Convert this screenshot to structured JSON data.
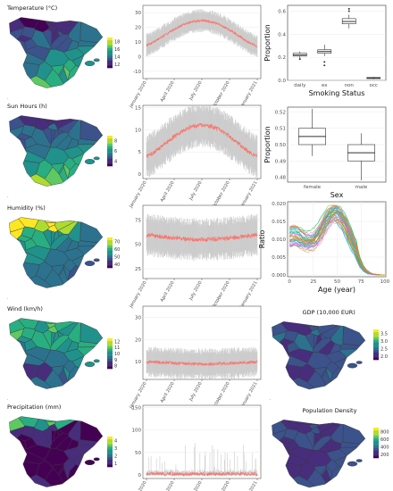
{
  "palette": {
    "viridis": [
      "#440154",
      "#472d7b",
      "#3b528b",
      "#2c728e",
      "#21918c",
      "#28ae80",
      "#5ec962",
      "#addc30",
      "#fde725"
    ],
    "line": "#f8766d",
    "band": "#cccccc",
    "grid": "#ebebeb",
    "axis": "#4d4d4d",
    "panel_border": "#333333",
    "map_border": "#333333"
  },
  "dates": [
    "January 2020",
    "April 2020",
    "July 2020",
    "October 2020",
    "January 2021"
  ],
  "maps": [
    {
      "title": "Temperature (°C)",
      "ticks": [
        "12",
        "14",
        "16",
        "18"
      ],
      "pattern": "temperature"
    },
    {
      "title": "Sun Hours (h)",
      "ticks": [
        "4",
        "6",
        "8"
      ],
      "pattern": "sun"
    },
    {
      "title": "Humidity (%)",
      "ticks": [
        "40",
        "50",
        "60",
        "70"
      ],
      "pattern": "humidity"
    },
    {
      "title": "Wind (km/h)",
      "ticks": [
        "8",
        "9",
        "10",
        "11",
        "12"
      ],
      "pattern": "wind"
    },
    {
      "title": "Precipitation (mm)",
      "ticks": [
        "1",
        "2",
        "3",
        "4"
      ],
      "pattern": "precip"
    },
    {
      "title": "GDP (10,000 EUR)",
      "ticks": [
        "2.0",
        "2.5",
        "3.0",
        "3.5"
      ],
      "pattern": "gdp"
    },
    {
      "title": "Population Density",
      "ticks": [
        "200",
        "400",
        "600",
        "800"
      ],
      "pattern": "density"
    }
  ],
  "chart_data": [
    {
      "id": "temperature_ts",
      "type": "line",
      "series": [
        {
          "values_profile": "seasonal"
        }
      ],
      "y_ticks": [
        "-10",
        "0",
        "10",
        "20",
        "30"
      ],
      "ylim": [
        -15,
        35
      ],
      "x_ticks": [
        "January 2020",
        "April 2020",
        "July 2020",
        "October 2020",
        "January 2021"
      ],
      "mean_start": 8,
      "mean_peak": 25,
      "mean_end": 5,
      "band_half_width": 8
    },
    {
      "id": "sun_ts",
      "type": "line",
      "series": [
        {
          "values_profile": "seasonal"
        }
      ],
      "y_ticks": [
        "0",
        "5",
        "10",
        "15"
      ],
      "ylim": [
        -1,
        15.5
      ],
      "x_ticks": [
        "January 2020",
        "April 2020",
        "July 2020",
        "October 2020",
        "January 2021"
      ],
      "mean_start": 4,
      "mean_peak": 11,
      "mean_end": 4,
      "band_half_width": 5
    },
    {
      "id": "humidity_ts",
      "type": "line",
      "series": [
        {
          "values_profile": "noisy"
        }
      ],
      "y_ticks": [
        "25",
        "50",
        "75"
      ],
      "ylim": [
        15,
        90
      ],
      "x_ticks": [
        "January 2020",
        "April 2020",
        "July 2020",
        "October 2020",
        "January 2021"
      ],
      "mean_start": 60,
      "mean_peak": 55,
      "mean_end": 60,
      "band_half_width": 22
    },
    {
      "id": "wind_ts",
      "type": "line",
      "series": [
        {
          "values_profile": "noisy"
        }
      ],
      "y_ticks": [
        "10",
        "20",
        "30"
      ],
      "ylim": [
        2,
        35
      ],
      "x_ticks": [
        "January 2020",
        "April 2020",
        "July 2020",
        "October 2020",
        "January 2021"
      ],
      "mean_start": 10,
      "mean_peak": 9,
      "mean_end": 10,
      "band_half_width": 7
    },
    {
      "id": "precip_ts",
      "type": "line",
      "series": [
        {
          "values_profile": "flat"
        }
      ],
      "y_ticks": [
        "0",
        "50",
        "100",
        "150"
      ],
      "ylim": [
        -8,
        155
      ],
      "x_ticks": [
        "January 2020",
        "April 2020",
        "July 2020",
        "October 2020",
        "January 2021"
      ],
      "mean_start": 2,
      "mean_peak": 2,
      "mean_end": 2,
      "band_half_width": 40
    },
    {
      "id": "smoking_box",
      "type": "box",
      "xlabel": "Smoking Status",
      "ylabel": "Proportion",
      "categories": [
        "daily",
        "ex",
        "non",
        "occ"
      ],
      "ylim": [
        0,
        0.65
      ],
      "y_ticks": [
        "0.0",
        "0.2",
        "0.4",
        "0.6"
      ],
      "boxes": [
        {
          "min": 0.19,
          "q1": 0.21,
          "median": 0.22,
          "q3": 0.235,
          "max": 0.25,
          "outliers": [
            0.185
          ]
        },
        {
          "min": 0.21,
          "q1": 0.235,
          "median": 0.25,
          "q3": 0.265,
          "max": 0.31,
          "outliers": [
            0.13,
            0.16
          ]
        },
        {
          "min": 0.45,
          "q1": 0.49,
          "median": 0.51,
          "q3": 0.535,
          "max": 0.57,
          "outliers": [
            0.6,
            0.62
          ]
        },
        {
          "min": 0.01,
          "q1": 0.015,
          "median": 0.02,
          "q3": 0.025,
          "max": 0.03,
          "outliers": []
        }
      ]
    },
    {
      "id": "sex_box",
      "type": "box",
      "xlabel": "Sex",
      "ylabel": "Proportion",
      "categories": [
        "female",
        "male"
      ],
      "ylim": [
        0.477,
        0.523
      ],
      "y_ticks": [
        "0.48",
        "0.49",
        "0.50",
        "0.51",
        "0.52"
      ],
      "boxes": [
        {
          "min": 0.493,
          "q1": 0.5,
          "median": 0.505,
          "q3": 0.51,
          "max": 0.522,
          "outliers": []
        },
        {
          "min": 0.478,
          "q1": 0.49,
          "median": 0.495,
          "q3": 0.5,
          "max": 0.507,
          "outliers": []
        }
      ]
    },
    {
      "id": "age_lines",
      "type": "line",
      "xlabel": "Age (year)",
      "ylabel": "Ratio",
      "xlim": [
        -2,
        101
      ],
      "ylim": [
        -0.0005,
        0.0205
      ],
      "x_ticks": [
        "0",
        "25",
        "50",
        "75",
        "100"
      ],
      "y_ticks": [
        "0.000",
        "0.005",
        "0.010",
        "0.015",
        "0.020"
      ],
      "series_count": 48
    }
  ]
}
